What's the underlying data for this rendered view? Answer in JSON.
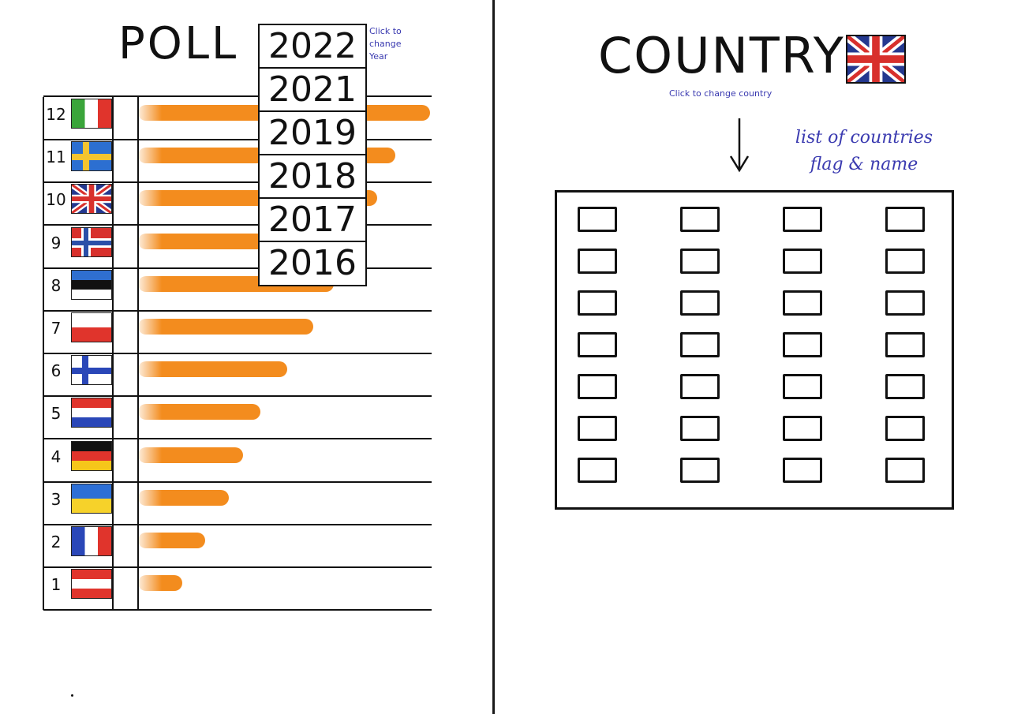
{
  "poll": {
    "title": "POLL",
    "selected_year": "2022",
    "years": [
      "2022",
      "2021",
      "2019",
      "2018",
      "2017",
      "2016"
    ],
    "year_hint": "Click to change Year",
    "rows": [
      {
        "rank": "12",
        "flag": "italy-flag-icon",
        "value": 100
      },
      {
        "rank": "11",
        "flag": "sweden-flag-icon",
        "value": 88
      },
      {
        "rank": "10",
        "flag": "uk-flag-icon",
        "value": 82
      },
      {
        "rank": "9",
        "flag": "norway-flag-icon",
        "value": 75
      },
      {
        "rank": "8",
        "flag": "estonia-flag-icon",
        "value": 67
      },
      {
        "rank": "7",
        "flag": "poland-flag-icon",
        "value": 60
      },
      {
        "rank": "6",
        "flag": "finland-flag-icon",
        "value": 51
      },
      {
        "rank": "5",
        "flag": "netherlands-flag-icon",
        "value": 42
      },
      {
        "rank": "4",
        "flag": "germany-flag-icon",
        "value": 36
      },
      {
        "rank": "3",
        "flag": "ukraine-flag-icon",
        "value": 31
      },
      {
        "rank": "2",
        "flag": "france-flag-icon",
        "value": 23
      },
      {
        "rank": "1",
        "flag": "austria-flag-icon",
        "value": 15
      }
    ]
  },
  "country": {
    "title": "COUNTRY",
    "flag": "uk-flag-icon",
    "hint": "Click to change country",
    "list_note_line1": "list of countries",
    "list_note_line2": "flag & name",
    "grid_columns": 4,
    "grid_rows": 7
  },
  "colors": {
    "bar": "#f38c1e",
    "annotation": "#3a3ab0",
    "ink": "#111111"
  }
}
